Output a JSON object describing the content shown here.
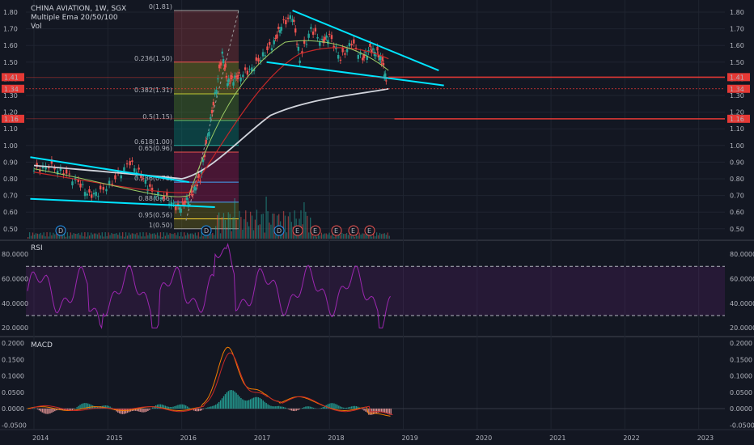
{
  "header": {
    "symbol_line": "CHINA AVIATION, 1W, SGX",
    "ema_line": "Multiple Ema 20/50/100",
    "vol_line": "Vol"
  },
  "chart_data": {
    "type": "line",
    "main_price_axis": [
      "1.80",
      "1.70",
      "1.60",
      "1.50",
      "1.40",
      "1.30",
      "1.20",
      "1.10",
      "1.00",
      "0.90",
      "0.80",
      "0.70",
      "0.60",
      "0.50"
    ],
    "price_badges": [
      {
        "value": "1.41",
        "color": "#e53935"
      },
      {
        "value": "1.34",
        "color": "#e53935"
      },
      {
        "value": "1.16",
        "color": "#e53935"
      }
    ],
    "x_labels": [
      "2014",
      "2015",
      "2016",
      "2017",
      "2018",
      "2019",
      "2020",
      "2021",
      "2022",
      "2023"
    ],
    "fib_levels": [
      {
        "label": "0(1.81)",
        "value": 1.81,
        "color": "#9e9e9e"
      },
      {
        "label": "0.236(1.50)",
        "value": 1.5,
        "color": "#ef5350"
      },
      {
        "label": "0.382(1.31)",
        "value": 1.31,
        "color": "#c0ca33"
      },
      {
        "label": "0.5(1.15)",
        "value": 1.15,
        "color": "#66bb6a"
      },
      {
        "label": "0.618(1.00)",
        "value": 1.0,
        "color": "#26a69a"
      },
      {
        "label": "0.65(0.96)",
        "value": 0.96,
        "color": "#ef5350"
      },
      {
        "label": "0.786(0.78)",
        "value": 0.78,
        "color": "#42a5f5"
      },
      {
        "label": "0.88(0.66)",
        "value": 0.66,
        "color": "#42a5f5"
      },
      {
        "label": "0.95(0.56)",
        "value": 0.56,
        "color": "#fdd835"
      },
      {
        "label": "1(0.50)",
        "value": 0.5,
        "color": "#9e9e9e"
      }
    ],
    "horizontal_levels": [
      1.41,
      1.34,
      1.16
    ],
    "event_markers": [
      "D",
      "D",
      "D",
      "E",
      "E",
      "E",
      "E",
      "E"
    ],
    "rsi": {
      "title": "RSI",
      "axis": [
        "80.0000",
        "60.0000",
        "40.0000",
        "20.0000"
      ],
      "upper": 70,
      "lower": 30
    },
    "macd": {
      "title": "MACD",
      "axis": [
        "0.2000",
        "0.1500",
        "0.1000",
        "0.0500",
        "0.0000",
        "-0.0500"
      ]
    },
    "colors": {
      "trendline": "#00e5ff",
      "level": "#e53935",
      "ema_slow": "#d1d4dc",
      "ema_mid": "#c62828",
      "ema_fast": "#9ccc65",
      "rsi": "#9c27b0"
    }
  }
}
